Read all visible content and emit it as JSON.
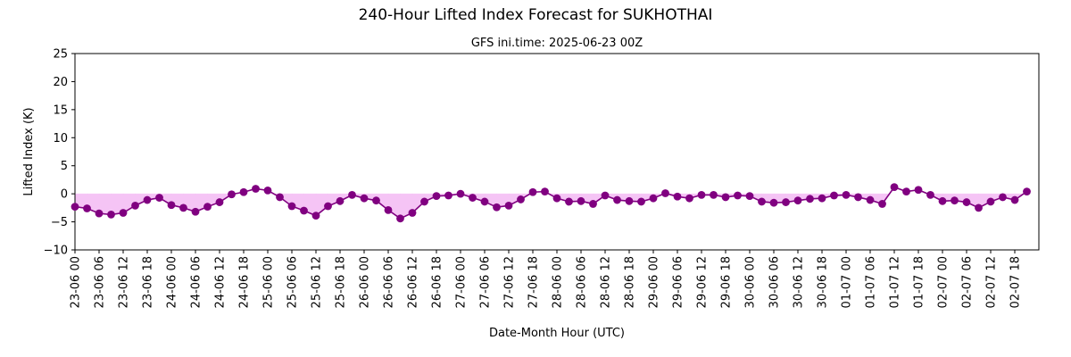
{
  "chart_data": {
    "type": "line",
    "title": "240-Hour Lifted Index Forecast for SUKHOTHAI",
    "subtitle": "GFS ini.time: 2025-06-23 00Z",
    "xlabel": "Date-Month Hour (UTC)",
    "ylabel": "Lifted Index (K)",
    "ylim": [
      -10,
      25
    ],
    "yticks": [
      -10,
      -5,
      0,
      5,
      10,
      15,
      20,
      25
    ],
    "xtick_labels": [
      "23-06 00",
      "23-06 06",
      "23-06 12",
      "23-06 18",
      "24-06 00",
      "24-06 06",
      "24-06 12",
      "24-06 18",
      "25-06 00",
      "25-06 06",
      "25-06 12",
      "25-06 18",
      "26-06 00",
      "26-06 06",
      "26-06 12",
      "26-06 18",
      "27-06 00",
      "27-06 06",
      "27-06 12",
      "27-06 18",
      "28-06 00",
      "28-06 06",
      "28-06 12",
      "28-06 18",
      "29-06 00",
      "29-06 06",
      "29-06 12",
      "29-06 18",
      "30-06 00",
      "30-06 06",
      "30-06 12",
      "30-06 18",
      "01-07 00",
      "01-07 06",
      "01-07 12",
      "01-07 18",
      "02-07 00",
      "02-07 06",
      "02-07 12",
      "02-07 18"
    ],
    "xtick_step_hours": 6,
    "x_step_hours": 3,
    "x_max_hours": 240,
    "series": [
      {
        "color": "#800080",
        "fill_below_zero_color": "#f5c4f5",
        "values": [
          -2.3,
          -2.6,
          -3.5,
          -3.7,
          -3.4,
          -2.1,
          -1.1,
          -0.7,
          -2.0,
          -2.5,
          -3.2,
          -2.3,
          -1.5,
          -0.1,
          0.3,
          0.9,
          0.6,
          -0.6,
          -2.2,
          -3.0,
          -3.9,
          -2.2,
          -1.3,
          -0.2,
          -0.8,
          -1.2,
          -2.9,
          -4.4,
          -3.4,
          -1.4,
          -0.4,
          -0.3,
          0.0,
          -0.7,
          -1.4,
          -2.4,
          -2.1,
          -1.0,
          0.3,
          0.4,
          -0.8,
          -1.4,
          -1.3,
          -1.8,
          -0.3,
          -1.1,
          -1.3,
          -1.4,
          -0.8,
          0.1,
          -0.5,
          -0.8,
          -0.2,
          -0.2,
          -0.6,
          -0.3,
          -0.4,
          -1.4,
          -1.6,
          -1.5,
          -1.2,
          -0.9,
          -0.8,
          -0.3,
          -0.2,
          -0.6,
          -1.1,
          -1.8,
          1.2,
          0.4,
          0.7,
          -0.2,
          -1.3,
          -1.2,
          -1.5,
          -2.5,
          -1.4,
          -0.6,
          -1.1,
          0.4
        ]
      }
    ]
  }
}
